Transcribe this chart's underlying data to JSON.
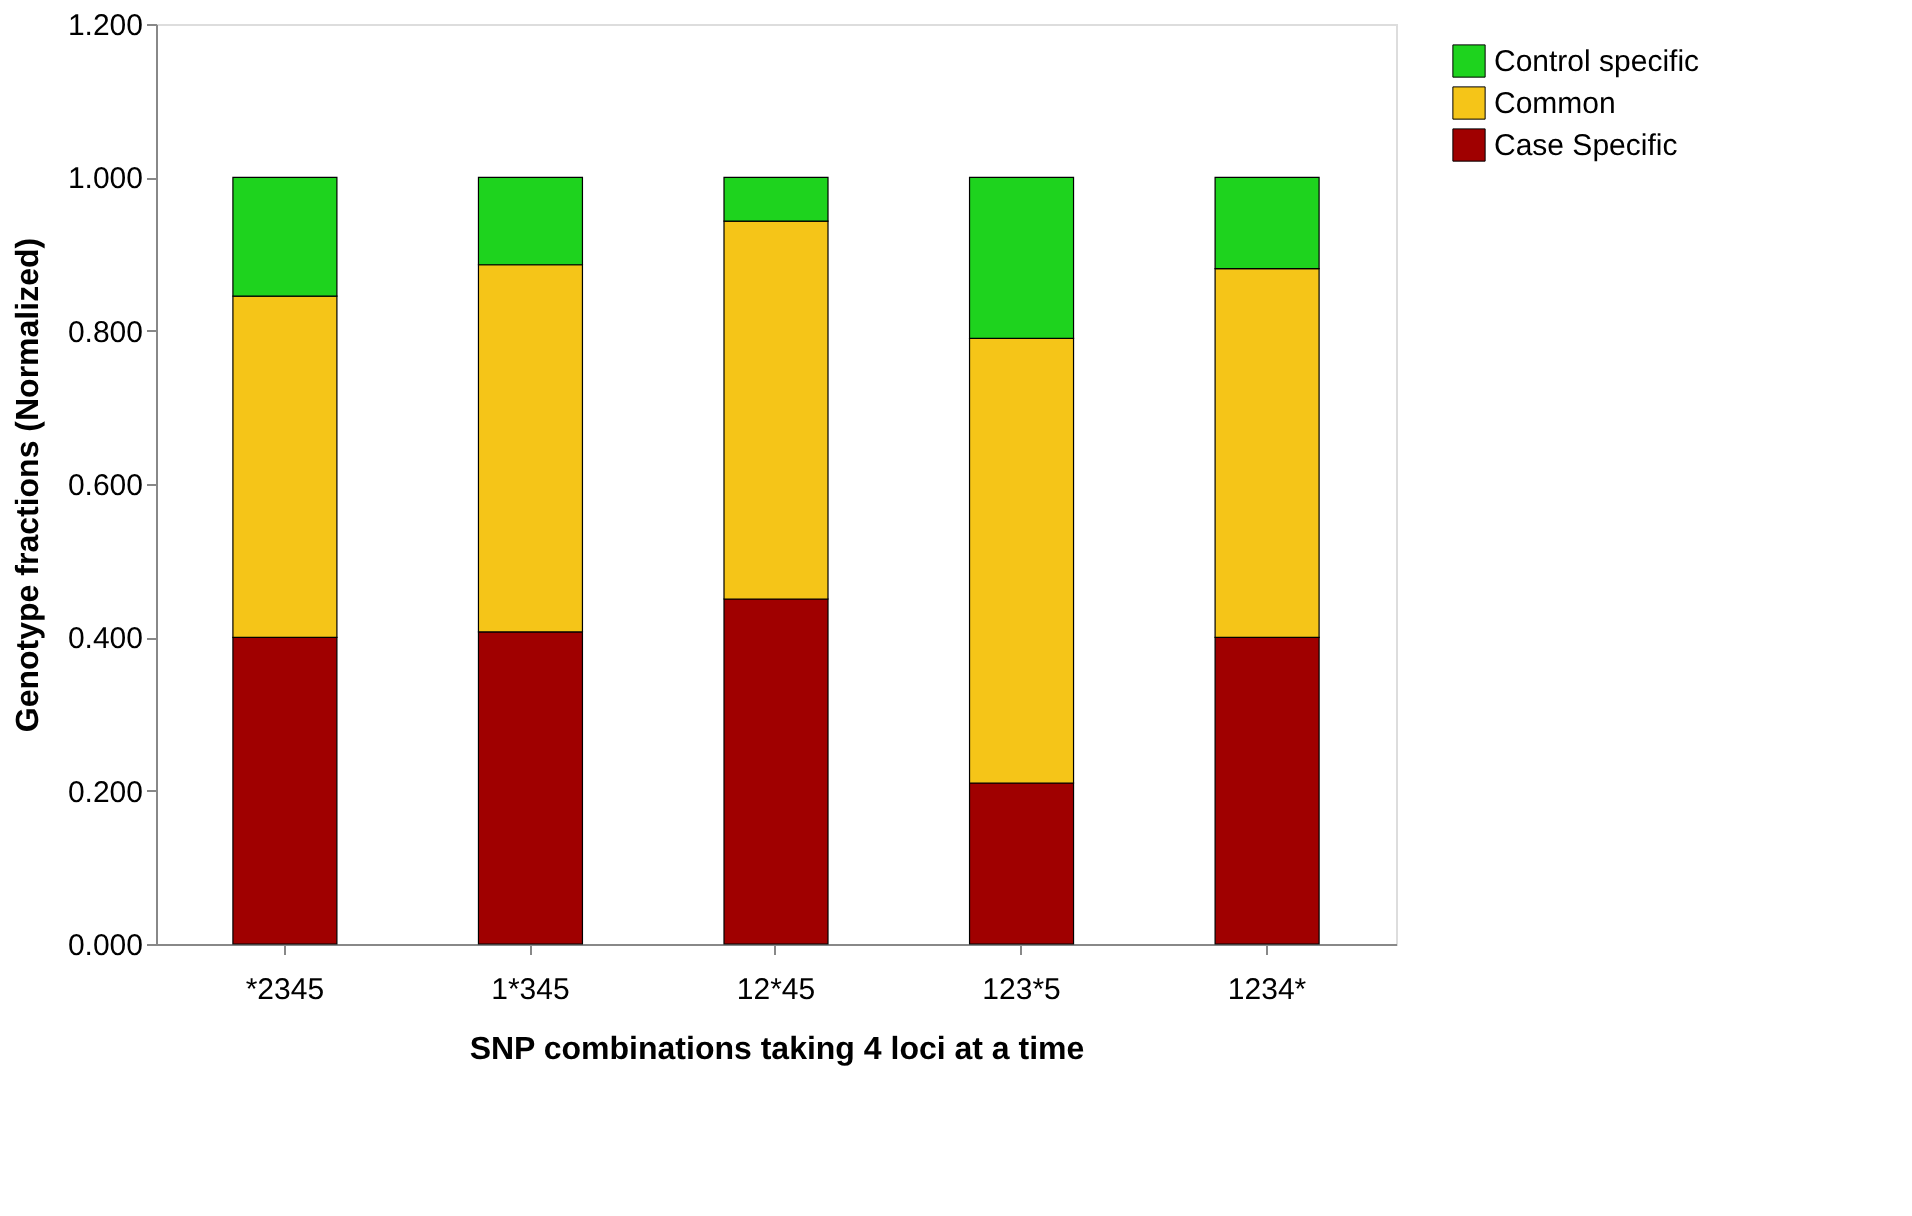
{
  "chart_data": {
    "type": "bar",
    "stacked": true,
    "xlabel": "SNP combinations taking 4 loci at a time",
    "ylabel": "Genotype fractions (Normalized)",
    "categories": [
      "*2345",
      "1*345",
      "12*45",
      "123*5",
      "1234*"
    ],
    "series": [
      {
        "name": "Case Specific",
        "color": "#a00000",
        "values": [
          0.4,
          0.407,
          0.45,
          0.21,
          0.4
        ]
      },
      {
        "name": "Common",
        "color": "#f5c518",
        "values": [
          0.445,
          0.479,
          0.493,
          0.58,
          0.481
        ]
      },
      {
        "name": "Control specific",
        "color": "#1ed31e",
        "values": [
          0.155,
          0.114,
          0.057,
          0.21,
          0.119
        ]
      }
    ],
    "ylim": [
      0,
      1.2
    ],
    "yticks": [
      {
        "value": 0,
        "label": "0.000"
      },
      {
        "value": 0.2,
        "label": "0.200"
      },
      {
        "value": 0.4,
        "label": "0.400"
      },
      {
        "value": 0.6,
        "label": "0.600"
      },
      {
        "value": 0.8,
        "label": "0.800"
      },
      {
        "value": 1.0,
        "label": "1.000"
      },
      {
        "value": 1.2,
        "label": "1.200"
      }
    ],
    "grid": false,
    "legend": "right"
  }
}
